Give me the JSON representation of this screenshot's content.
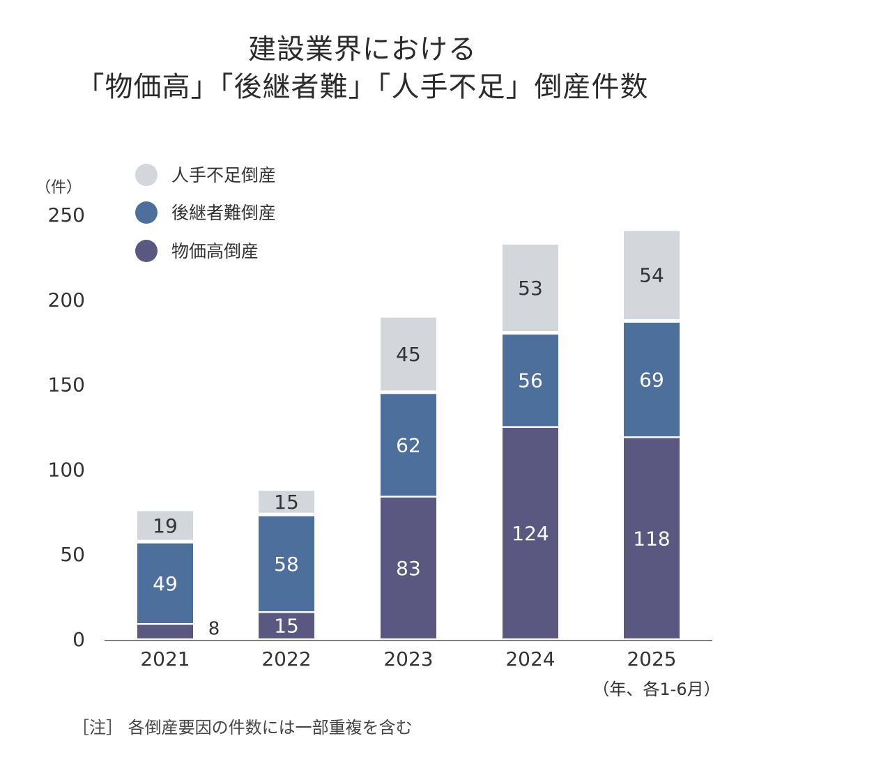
{
  "chart_data": {
    "type": "bar",
    "stacked": true,
    "title_line1": "建設業界における",
    "title_line2": "「物価高」「後継者難」「人手不足」倒産件数",
    "ylabel": "（件）",
    "ylim": [
      0,
      250
    ],
    "yticks": [
      0,
      50,
      100,
      150,
      200,
      250
    ],
    "categories": [
      "2021",
      "2022",
      "2023",
      "2024",
      "2025"
    ],
    "x_unit_note": "（年、各1-6月）",
    "legend_position": "top-left",
    "grid": false,
    "series": [
      {
        "name": "物価高倒産",
        "color": "#5a5780",
        "values": [
          8,
          15,
          83,
          124,
          118
        ]
      },
      {
        "name": "後継者難倒産",
        "color": "#4d6f9b",
        "values": [
          49,
          58,
          62,
          56,
          69
        ]
      },
      {
        "name": "人手不足倒産",
        "color": "#d3d6da",
        "values": [
          19,
          15,
          45,
          53,
          54
        ]
      }
    ],
    "legend_order": [
      "人手不足倒産",
      "後継者難倒産",
      "物価高倒産"
    ]
  },
  "note": "［注］ 各倒産要因の件数には一部重複を含む"
}
